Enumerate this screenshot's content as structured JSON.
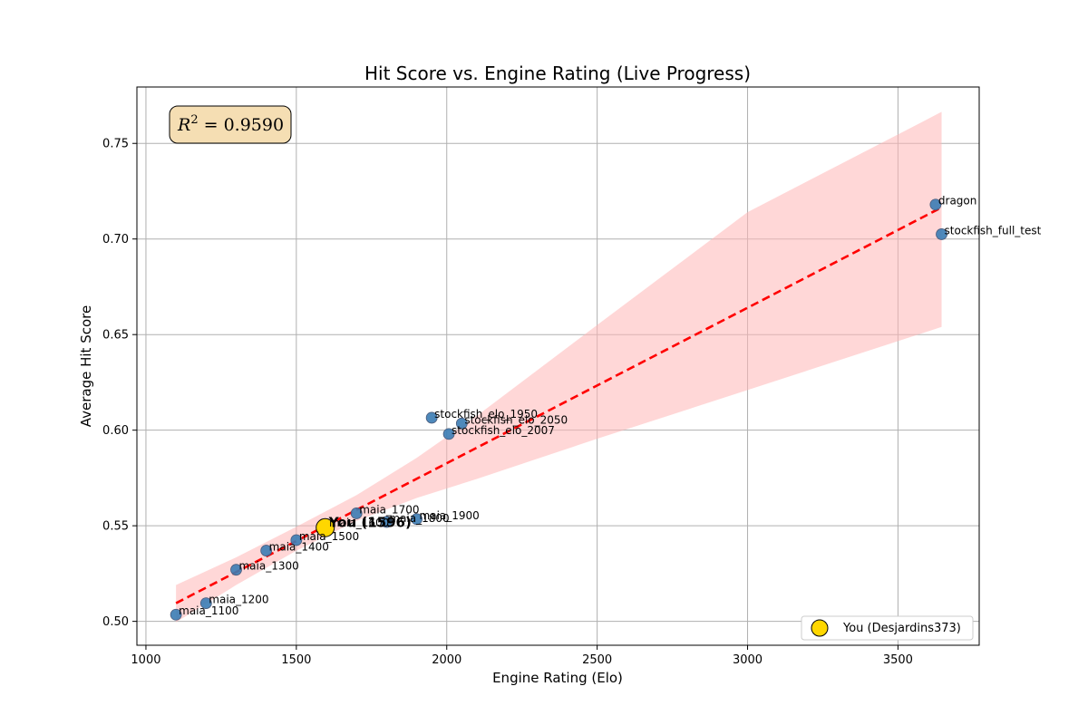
{
  "chart_data": {
    "type": "scatter",
    "title": "Hit Score vs. Engine Rating (Live Progress)",
    "xlabel": "Engine Rating (Elo)",
    "ylabel": "Average Hit Score",
    "xlim": [
      970,
      3770
    ],
    "ylim": [
      0.4875,
      0.7795
    ],
    "xticks": [
      1000,
      1500,
      2000,
      2500,
      3000,
      3500
    ],
    "yticks": [
      0.5,
      0.55,
      0.6,
      0.65,
      0.7,
      0.75
    ],
    "grid": true,
    "r2_label": "0.9590",
    "engines": [
      {
        "name": "maia_1100",
        "x": 1100,
        "y": 0.5035
      },
      {
        "name": "maia_1200",
        "x": 1200,
        "y": 0.5095
      },
      {
        "name": "maia_1300",
        "x": 1300,
        "y": 0.527
      },
      {
        "name": "maia_1400",
        "x": 1400,
        "y": 0.537
      },
      {
        "name": "maia_1500",
        "x": 1500,
        "y": 0.5425
      },
      {
        "name": "maia_1600",
        "x": 1600,
        "y": 0.5495
      },
      {
        "name": "maia_1700",
        "x": 1700,
        "y": 0.5565
      },
      {
        "name": "maia_1800",
        "x": 1800,
        "y": 0.552
      },
      {
        "name": "maia_1900",
        "x": 1900,
        "y": 0.5535
      },
      {
        "name": "stockfish_elo_1950",
        "x": 1950,
        "y": 0.6065
      },
      {
        "name": "stockfish_elo_2007",
        "x": 2007,
        "y": 0.598
      },
      {
        "name": "stockfish_elo_2050",
        "x": 2050,
        "y": 0.6035
      },
      {
        "name": "dragon",
        "x": 3625,
        "y": 0.718
      },
      {
        "name": "stockfish_full_test",
        "x": 3645,
        "y": 0.7025
      }
    ],
    "you": {
      "label": "You (1596)",
      "x": 1596,
      "y": 0.549
    },
    "trend_line": {
      "x": [
        1100,
        3645
      ],
      "y": [
        0.5095,
        0.7165
      ]
    },
    "confidence_band": [
      {
        "x": 1100,
        "lo": 0.4995,
        "hi": 0.519
      },
      {
        "x": 1300,
        "lo": 0.519,
        "hi": 0.5335
      },
      {
        "x": 1500,
        "lo": 0.537,
        "hi": 0.5495
      },
      {
        "x": 1700,
        "lo": 0.5525,
        "hi": 0.566
      },
      {
        "x": 1900,
        "lo": 0.5645,
        "hi": 0.5855
      },
      {
        "x": 2100,
        "lo": 0.5745,
        "hi": 0.6075
      },
      {
        "x": 2500,
        "lo": 0.5955,
        "hi": 0.655
      },
      {
        "x": 3000,
        "lo": 0.621,
        "hi": 0.714
      },
      {
        "x": 3645,
        "lo": 0.654,
        "hi": 0.7665
      }
    ],
    "legend": {
      "label": "You (Desjardins373)",
      "position": "lower-right"
    },
    "colors": {
      "engine_points": "#3b7cb4",
      "you_point": "#ffd700",
      "trend_line": "#ff0000",
      "band": "#ffb6b6",
      "r2_box_fill": "#f5deb3",
      "grid": "#b0b0b0"
    }
  }
}
